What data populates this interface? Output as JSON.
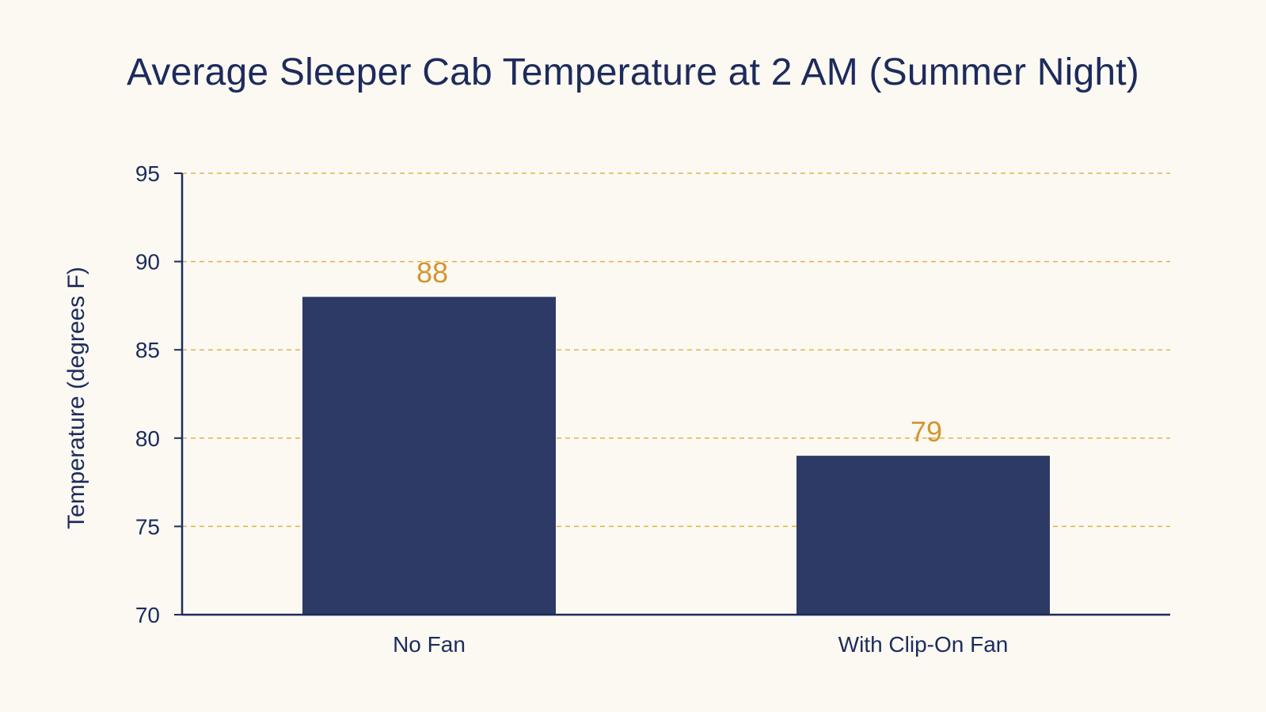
{
  "chart_data": {
    "type": "bar",
    "title": "Average Sleeper Cab Temperature at 2 AM (Summer Night)",
    "xlabel": "",
    "ylabel": "Temperature (degrees F)",
    "categories": [
      "No Fan",
      "With Clip-On Fan"
    ],
    "values": [
      88,
      79
    ],
    "data_labels": [
      "88",
      "79"
    ],
    "ylim": [
      70,
      95
    ],
    "yticks": [
      70,
      75,
      80,
      85,
      90,
      95
    ],
    "grid": true,
    "legend": "none"
  },
  "colors": {
    "bar": "#2e3a66",
    "axis": "#1d2b5c",
    "grid": "#e0b24c",
    "value_label": "#d4952e",
    "background": "#fbf9f2"
  }
}
